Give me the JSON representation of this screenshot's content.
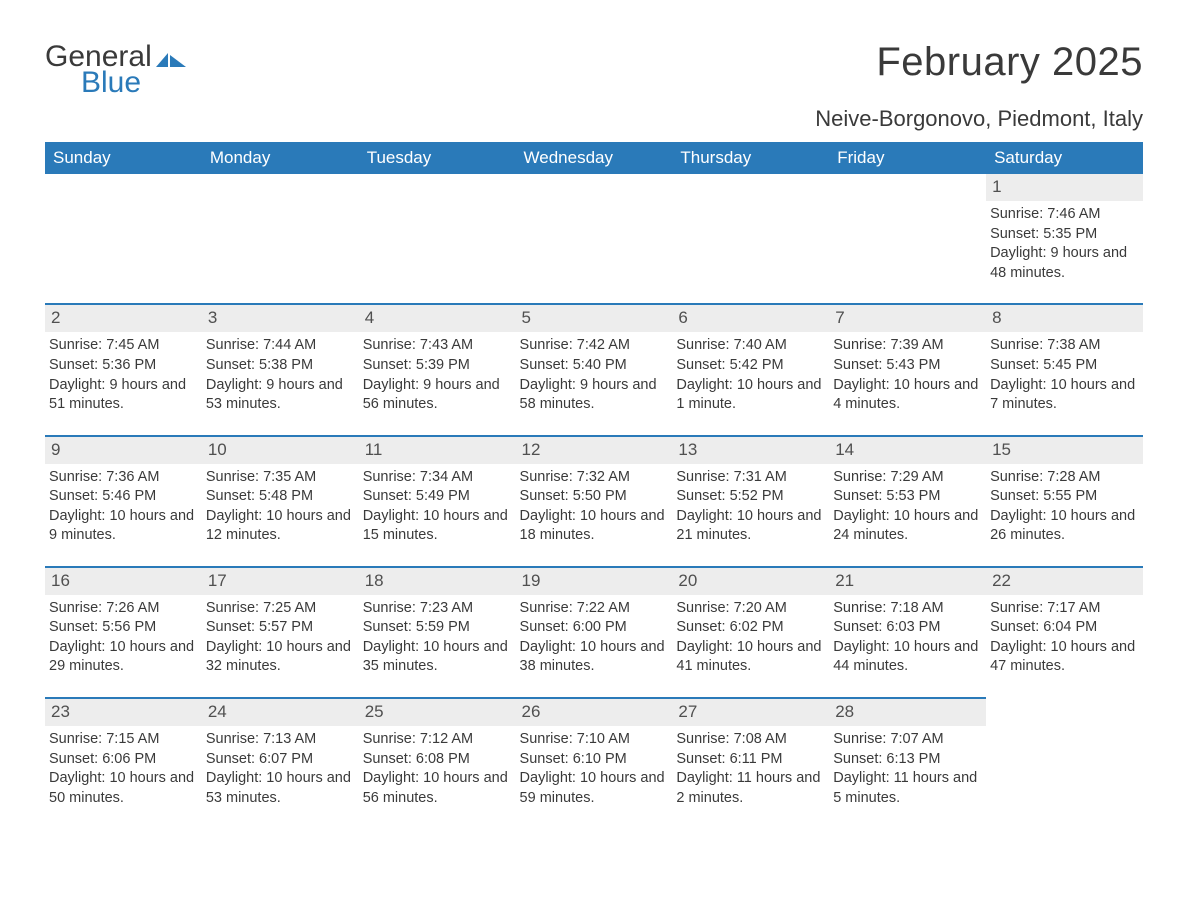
{
  "logo": {
    "text1": "General",
    "text2": "Blue",
    "icon_color": "#2a7ab9",
    "text1_color": "#3a3a3a",
    "text2_color": "#2a7ab9"
  },
  "title": "February 2025",
  "location": "Neive-Borgonovo, Piedmont, Italy",
  "colors": {
    "header_bg": "#2a7ab9",
    "header_text": "#ffffff",
    "row_border": "#2a7ab9",
    "daynum_bg": "#ededed",
    "body_text": "#3a3a3a",
    "page_bg": "#ffffff"
  },
  "weekdays": [
    "Sunday",
    "Monday",
    "Tuesday",
    "Wednesday",
    "Thursday",
    "Friday",
    "Saturday"
  ],
  "first_weekday_index": 6,
  "days_in_month": 28,
  "days": {
    "1": {
      "sunrise": "7:46 AM",
      "sunset": "5:35 PM",
      "daylight": "9 hours and 48 minutes."
    },
    "2": {
      "sunrise": "7:45 AM",
      "sunset": "5:36 PM",
      "daylight": "9 hours and 51 minutes."
    },
    "3": {
      "sunrise": "7:44 AM",
      "sunset": "5:38 PM",
      "daylight": "9 hours and 53 minutes."
    },
    "4": {
      "sunrise": "7:43 AM",
      "sunset": "5:39 PM",
      "daylight": "9 hours and 56 minutes."
    },
    "5": {
      "sunrise": "7:42 AM",
      "sunset": "5:40 PM",
      "daylight": "9 hours and 58 minutes."
    },
    "6": {
      "sunrise": "7:40 AM",
      "sunset": "5:42 PM",
      "daylight": "10 hours and 1 minute."
    },
    "7": {
      "sunrise": "7:39 AM",
      "sunset": "5:43 PM",
      "daylight": "10 hours and 4 minutes."
    },
    "8": {
      "sunrise": "7:38 AM",
      "sunset": "5:45 PM",
      "daylight": "10 hours and 7 minutes."
    },
    "9": {
      "sunrise": "7:36 AM",
      "sunset": "5:46 PM",
      "daylight": "10 hours and 9 minutes."
    },
    "10": {
      "sunrise": "7:35 AM",
      "sunset": "5:48 PM",
      "daylight": "10 hours and 12 minutes."
    },
    "11": {
      "sunrise": "7:34 AM",
      "sunset": "5:49 PM",
      "daylight": "10 hours and 15 minutes."
    },
    "12": {
      "sunrise": "7:32 AM",
      "sunset": "5:50 PM",
      "daylight": "10 hours and 18 minutes."
    },
    "13": {
      "sunrise": "7:31 AM",
      "sunset": "5:52 PM",
      "daylight": "10 hours and 21 minutes."
    },
    "14": {
      "sunrise": "7:29 AM",
      "sunset": "5:53 PM",
      "daylight": "10 hours and 24 minutes."
    },
    "15": {
      "sunrise": "7:28 AM",
      "sunset": "5:55 PM",
      "daylight": "10 hours and 26 minutes."
    },
    "16": {
      "sunrise": "7:26 AM",
      "sunset": "5:56 PM",
      "daylight": "10 hours and 29 minutes."
    },
    "17": {
      "sunrise": "7:25 AM",
      "sunset": "5:57 PM",
      "daylight": "10 hours and 32 minutes."
    },
    "18": {
      "sunrise": "7:23 AM",
      "sunset": "5:59 PM",
      "daylight": "10 hours and 35 minutes."
    },
    "19": {
      "sunrise": "7:22 AM",
      "sunset": "6:00 PM",
      "daylight": "10 hours and 38 minutes."
    },
    "20": {
      "sunrise": "7:20 AM",
      "sunset": "6:02 PM",
      "daylight": "10 hours and 41 minutes."
    },
    "21": {
      "sunrise": "7:18 AM",
      "sunset": "6:03 PM",
      "daylight": "10 hours and 44 minutes."
    },
    "22": {
      "sunrise": "7:17 AM",
      "sunset": "6:04 PM",
      "daylight": "10 hours and 47 minutes."
    },
    "23": {
      "sunrise": "7:15 AM",
      "sunset": "6:06 PM",
      "daylight": "10 hours and 50 minutes."
    },
    "24": {
      "sunrise": "7:13 AM",
      "sunset": "6:07 PM",
      "daylight": "10 hours and 53 minutes."
    },
    "25": {
      "sunrise": "7:12 AM",
      "sunset": "6:08 PM",
      "daylight": "10 hours and 56 minutes."
    },
    "26": {
      "sunrise": "7:10 AM",
      "sunset": "6:10 PM",
      "daylight": "10 hours and 59 minutes."
    },
    "27": {
      "sunrise": "7:08 AM",
      "sunset": "6:11 PM",
      "daylight": "11 hours and 2 minutes."
    },
    "28": {
      "sunrise": "7:07 AM",
      "sunset": "6:13 PM",
      "daylight": "11 hours and 5 minutes."
    }
  },
  "labels": {
    "sunrise": "Sunrise:",
    "sunset": "Sunset:",
    "daylight": "Daylight:"
  }
}
